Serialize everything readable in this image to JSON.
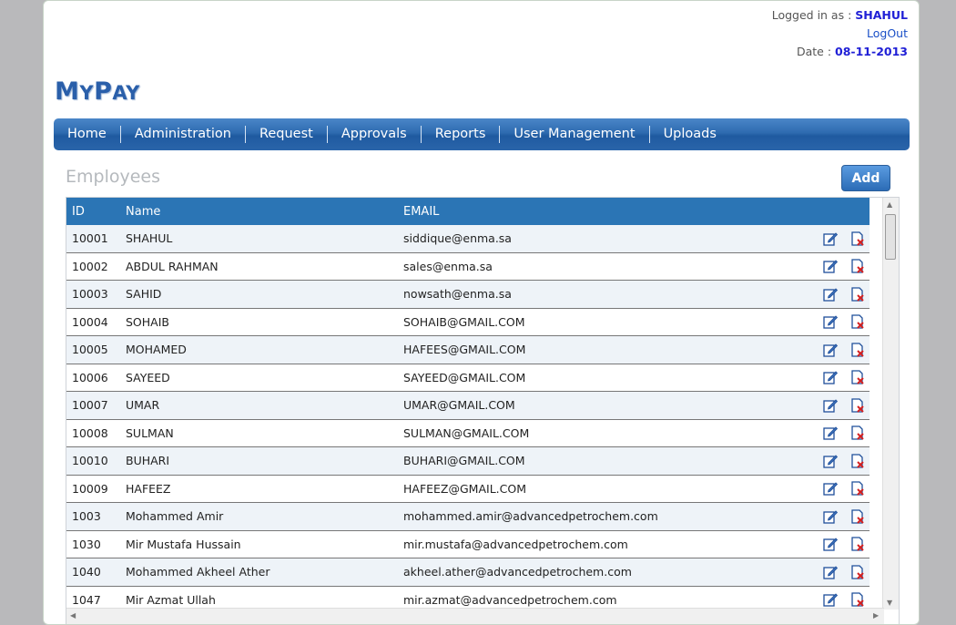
{
  "header": {
    "logged_in_label": "Logged in as :",
    "username": "SHAHUL",
    "logout": "LogOut",
    "date_label": "Date :",
    "date_value": "08-11-2013"
  },
  "logo": {
    "first": "M",
    "first_rest": "Y",
    "second": "P",
    "second_rest": "AY"
  },
  "nav": [
    "Home",
    "Administration",
    "Request",
    "Approvals",
    "Reports",
    "User Management",
    "Uploads"
  ],
  "section": {
    "title": "Employees",
    "add_label": "Add"
  },
  "table": {
    "headers": {
      "id": "ID",
      "name": "Name",
      "email": "EMAIL"
    },
    "rows": [
      {
        "id": "10001",
        "name": "SHAHUL",
        "email": "siddique@enma.sa"
      },
      {
        "id": "10002",
        "name": "ABDUL RAHMAN",
        "email": "sales@enma.sa"
      },
      {
        "id": "10003",
        "name": "SAHID",
        "email": "nowsath@enma.sa"
      },
      {
        "id": "10004",
        "name": "SOHAIB",
        "email": "SOHAIB@GMAIL.COM"
      },
      {
        "id": "10005",
        "name": "MOHAMED",
        "email": "HAFEES@GMAIL.COM"
      },
      {
        "id": "10006",
        "name": "SAYEED",
        "email": "SAYEED@GMAIL.COM"
      },
      {
        "id": "10007",
        "name": "UMAR",
        "email": "UMAR@GMAIL.COM"
      },
      {
        "id": "10008",
        "name": "SULMAN",
        "email": "SULMAN@GMAIL.COM"
      },
      {
        "id": "10010",
        "name": "BUHARI",
        "email": "BUHARI@GMAIL.COM"
      },
      {
        "id": "10009",
        "name": "HAFEEZ",
        "email": "HAFEEZ@GMAIL.COM"
      },
      {
        "id": "1003",
        "name": "Mohammed Amir",
        "email": "mohammed.amir@advancedpetrochem.com"
      },
      {
        "id": "1030",
        "name": "Mir Mustafa Hussain",
        "email": "mir.mustafa@advancedpetrochem.com"
      },
      {
        "id": "1040",
        "name": "Mohammed Akheel Ather",
        "email": "akheel.ather@advancedpetrochem.com"
      },
      {
        "id": "1047",
        "name": "Mir Azmat Ullah",
        "email": "mir.azmat@advancedpetrochem.com"
      }
    ]
  },
  "icons": {
    "edit": "edit-icon",
    "delete": "delete-icon"
  },
  "colors": {
    "nav": "#2e6bb0",
    "header_row": "#2b75b5",
    "accent": "#1f1fd6"
  }
}
